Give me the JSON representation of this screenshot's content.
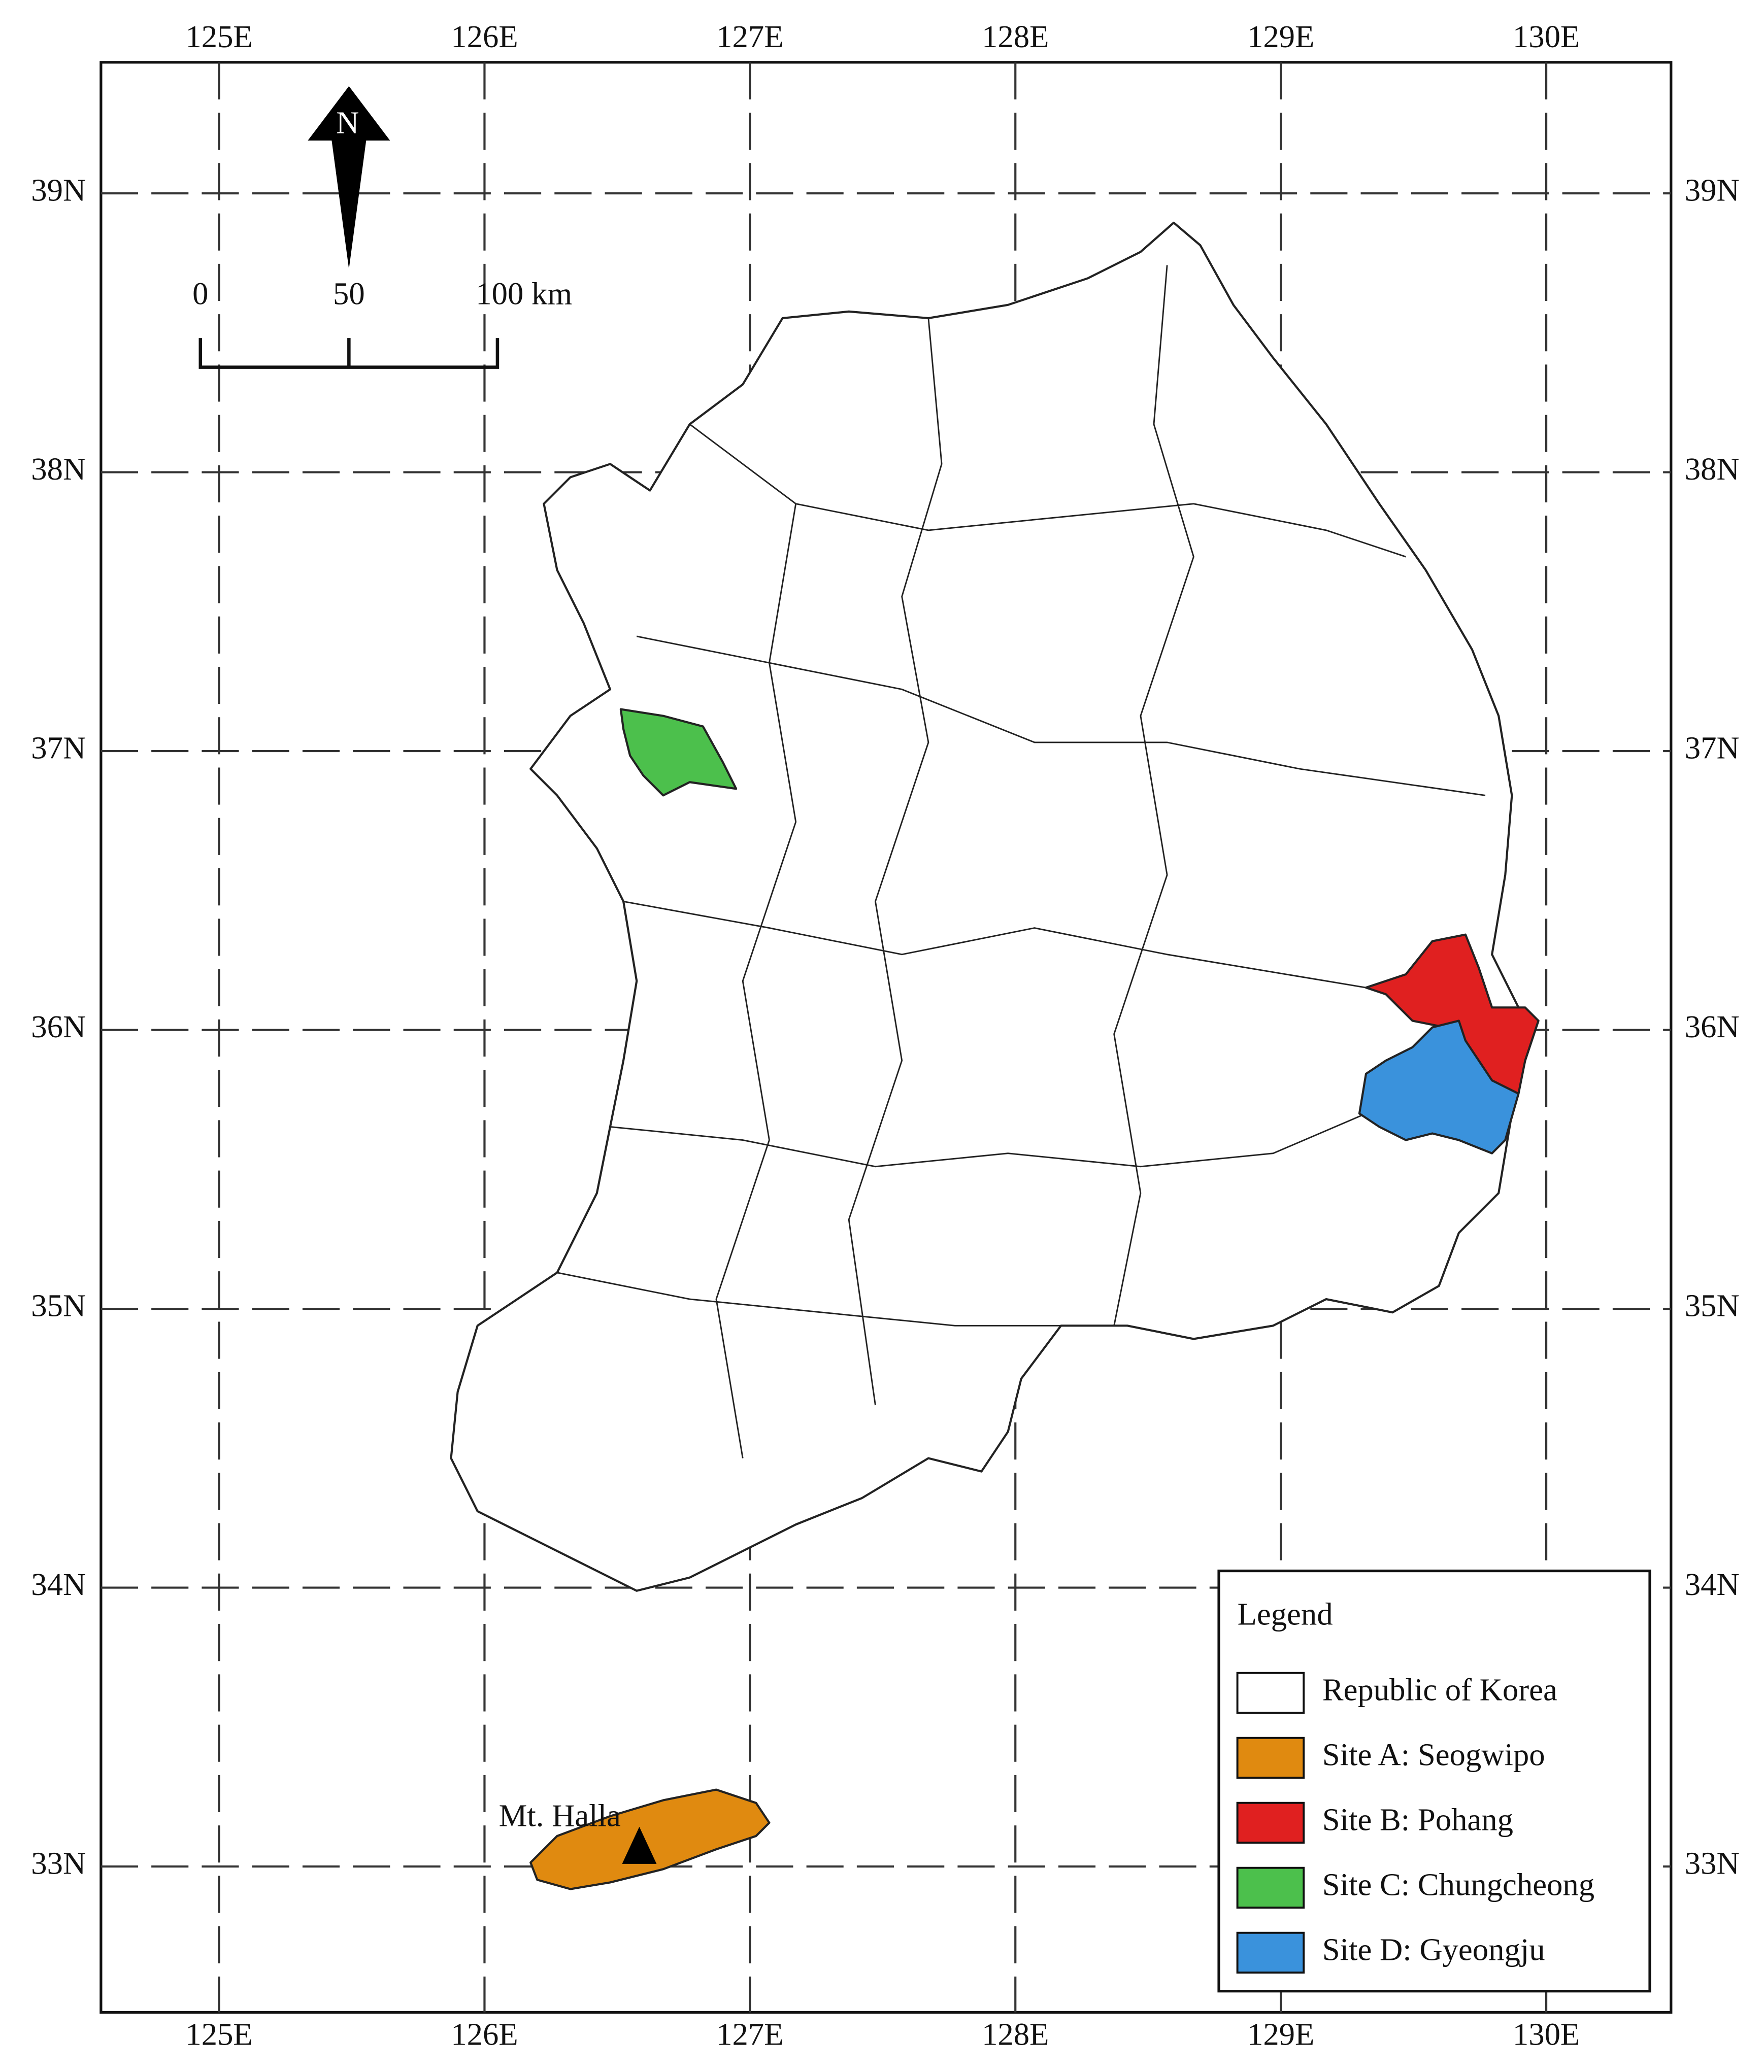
{
  "map": {
    "lon_range": [
      124.555,
      130.47
    ],
    "lat_range": [
      32.477,
      39.47
    ],
    "lon_ticks": [
      {
        "value": 125,
        "label": "125E"
      },
      {
        "value": 126,
        "label": "126E"
      },
      {
        "value": 127,
        "label": "127E"
      },
      {
        "value": 128,
        "label": "128E"
      },
      {
        "value": 129,
        "label": "129E"
      },
      {
        "value": 130,
        "label": "130E"
      }
    ],
    "lat_ticks": [
      {
        "value": 39,
        "label": "39N"
      },
      {
        "value": 38,
        "label": "38N"
      },
      {
        "value": 37,
        "label": "37N"
      },
      {
        "value": 36,
        "label": "36N"
      },
      {
        "value": 35,
        "label": "35N"
      },
      {
        "value": 34,
        "label": "34N"
      },
      {
        "value": 33,
        "label": "33N"
      }
    ],
    "north_label": "N",
    "scale_bar": [
      "0",
      "50",
      "100 km"
    ],
    "annotation": "Mt. Halla",
    "legend": {
      "title": "Legend",
      "items": [
        {
          "label": "Republic of Korea",
          "color": "#ffffff"
        },
        {
          "label": "Site A: Seogwipo",
          "color": "#e08a10"
        },
        {
          "label": "Site B: Pohang",
          "color": "#e02020"
        },
        {
          "label": "Site C: Chungcheong",
          "color": "#4cc04c"
        },
        {
          "label": "Site D: Gyeongju",
          "color": "#3a92dc"
        }
      ]
    }
  }
}
